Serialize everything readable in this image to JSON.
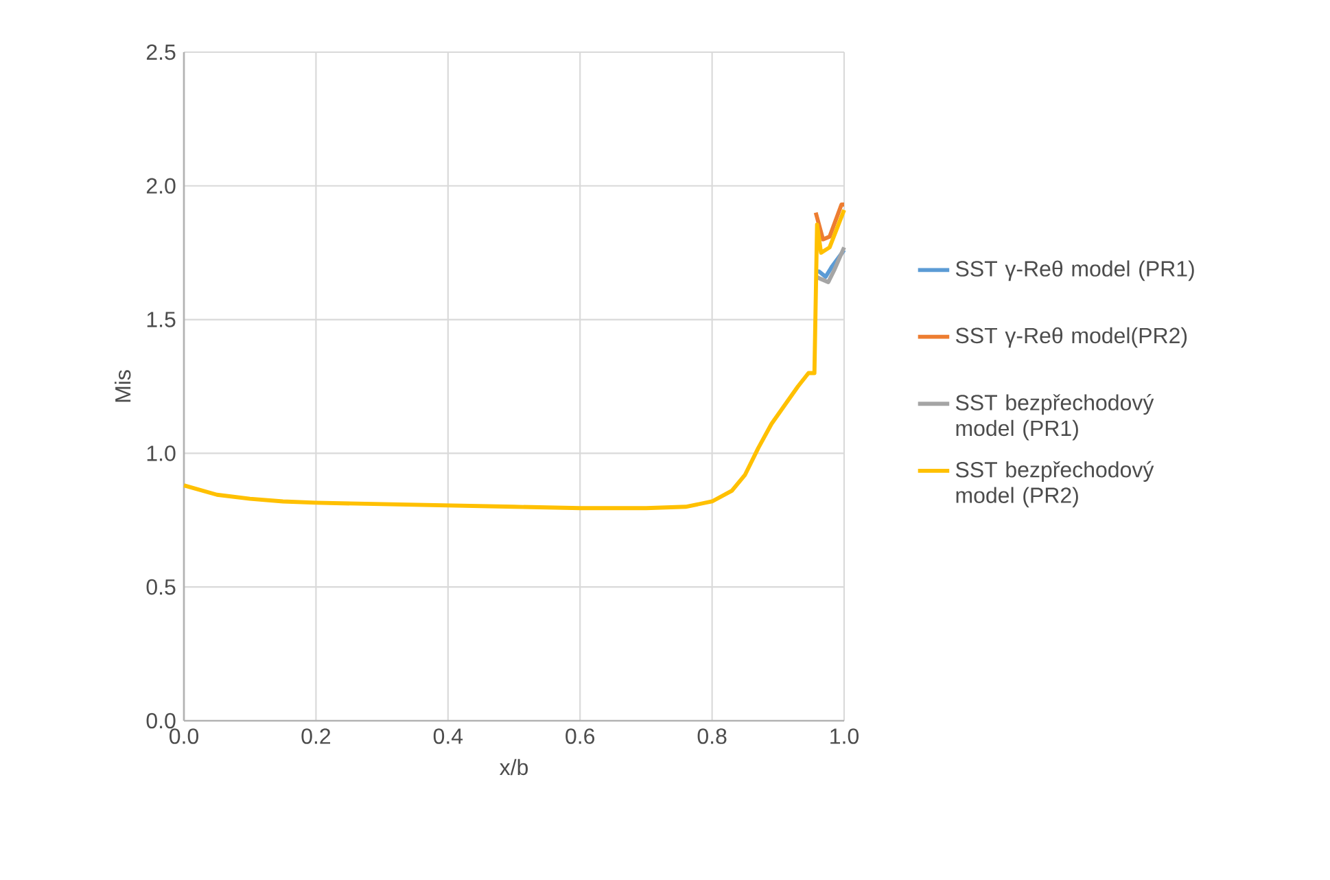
{
  "chart_data": {
    "type": "line",
    "xlabel": "x/b",
    "ylabel": "Mis",
    "xlim": [
      0,
      1
    ],
    "ylim": [
      0,
      2.5
    ],
    "xticks": [
      {
        "value": 0,
        "label": "0.0"
      },
      {
        "value": 0.2,
        "label": "0.2"
      },
      {
        "value": 0.4,
        "label": "0.4"
      },
      {
        "value": 0.6,
        "label": "0.6"
      },
      {
        "value": 0.8,
        "label": "0.8"
      },
      {
        "value": 1,
        "label": "1.0"
      }
    ],
    "yticks": [
      {
        "value": 0,
        "label": "0.0"
      },
      {
        "value": 0.5,
        "label": "0.5"
      },
      {
        "value": 1,
        "label": "1.0"
      },
      {
        "value": 1.5,
        "label": "1.5"
      },
      {
        "value": 2,
        "label": "2.0"
      },
      {
        "value": 2.5,
        "label": "2.5"
      }
    ],
    "grid": true,
    "legend": "right",
    "marker": "none",
    "line_style": "solid",
    "series": [
      {
        "name": "SST γ-Reθ model (PR1)",
        "color": "#5b9bd5",
        "x": [
          0.958,
          0.962,
          0.972,
          0.982,
          1.0
        ],
        "values": [
          1.68,
          1.68,
          1.66,
          1.7,
          1.76
        ]
      },
      {
        "name": "SST γ-Reθ model(PR2)",
        "color": "#ed7d31",
        "x": [
          0.957,
          0.968,
          0.978,
          0.996,
          1.0
        ],
        "values": [
          1.9,
          1.8,
          1.81,
          1.93,
          1.93
        ]
      },
      {
        "name": "SST bezpřechodový model (PR1)",
        "color": "#a5a5a5",
        "x": [
          0.958,
          0.962,
          0.976,
          0.985,
          1.0
        ],
        "values": [
          1.66,
          1.655,
          1.64,
          1.685,
          1.77
        ]
      },
      {
        "name": "SST bezpřechodový model (PR2)",
        "color": "#ffc000",
        "x": [
          0,
          0.05,
          0.1,
          0.15,
          0.2,
          0.3,
          0.4,
          0.5,
          0.6,
          0.7,
          0.76,
          0.8,
          0.83,
          0.85,
          0.87,
          0.89,
          0.91,
          0.93,
          0.946,
          0.955,
          0.959,
          0.965,
          0.978,
          1.0
        ],
        "values": [
          0.88,
          0.845,
          0.83,
          0.82,
          0.815,
          0.81,
          0.805,
          0.8,
          0.795,
          0.795,
          0.8,
          0.82,
          0.86,
          0.92,
          1.02,
          1.11,
          1.18,
          1.25,
          1.3,
          1.3,
          1.855,
          1.75,
          1.77,
          1.91
        ]
      }
    ]
  }
}
